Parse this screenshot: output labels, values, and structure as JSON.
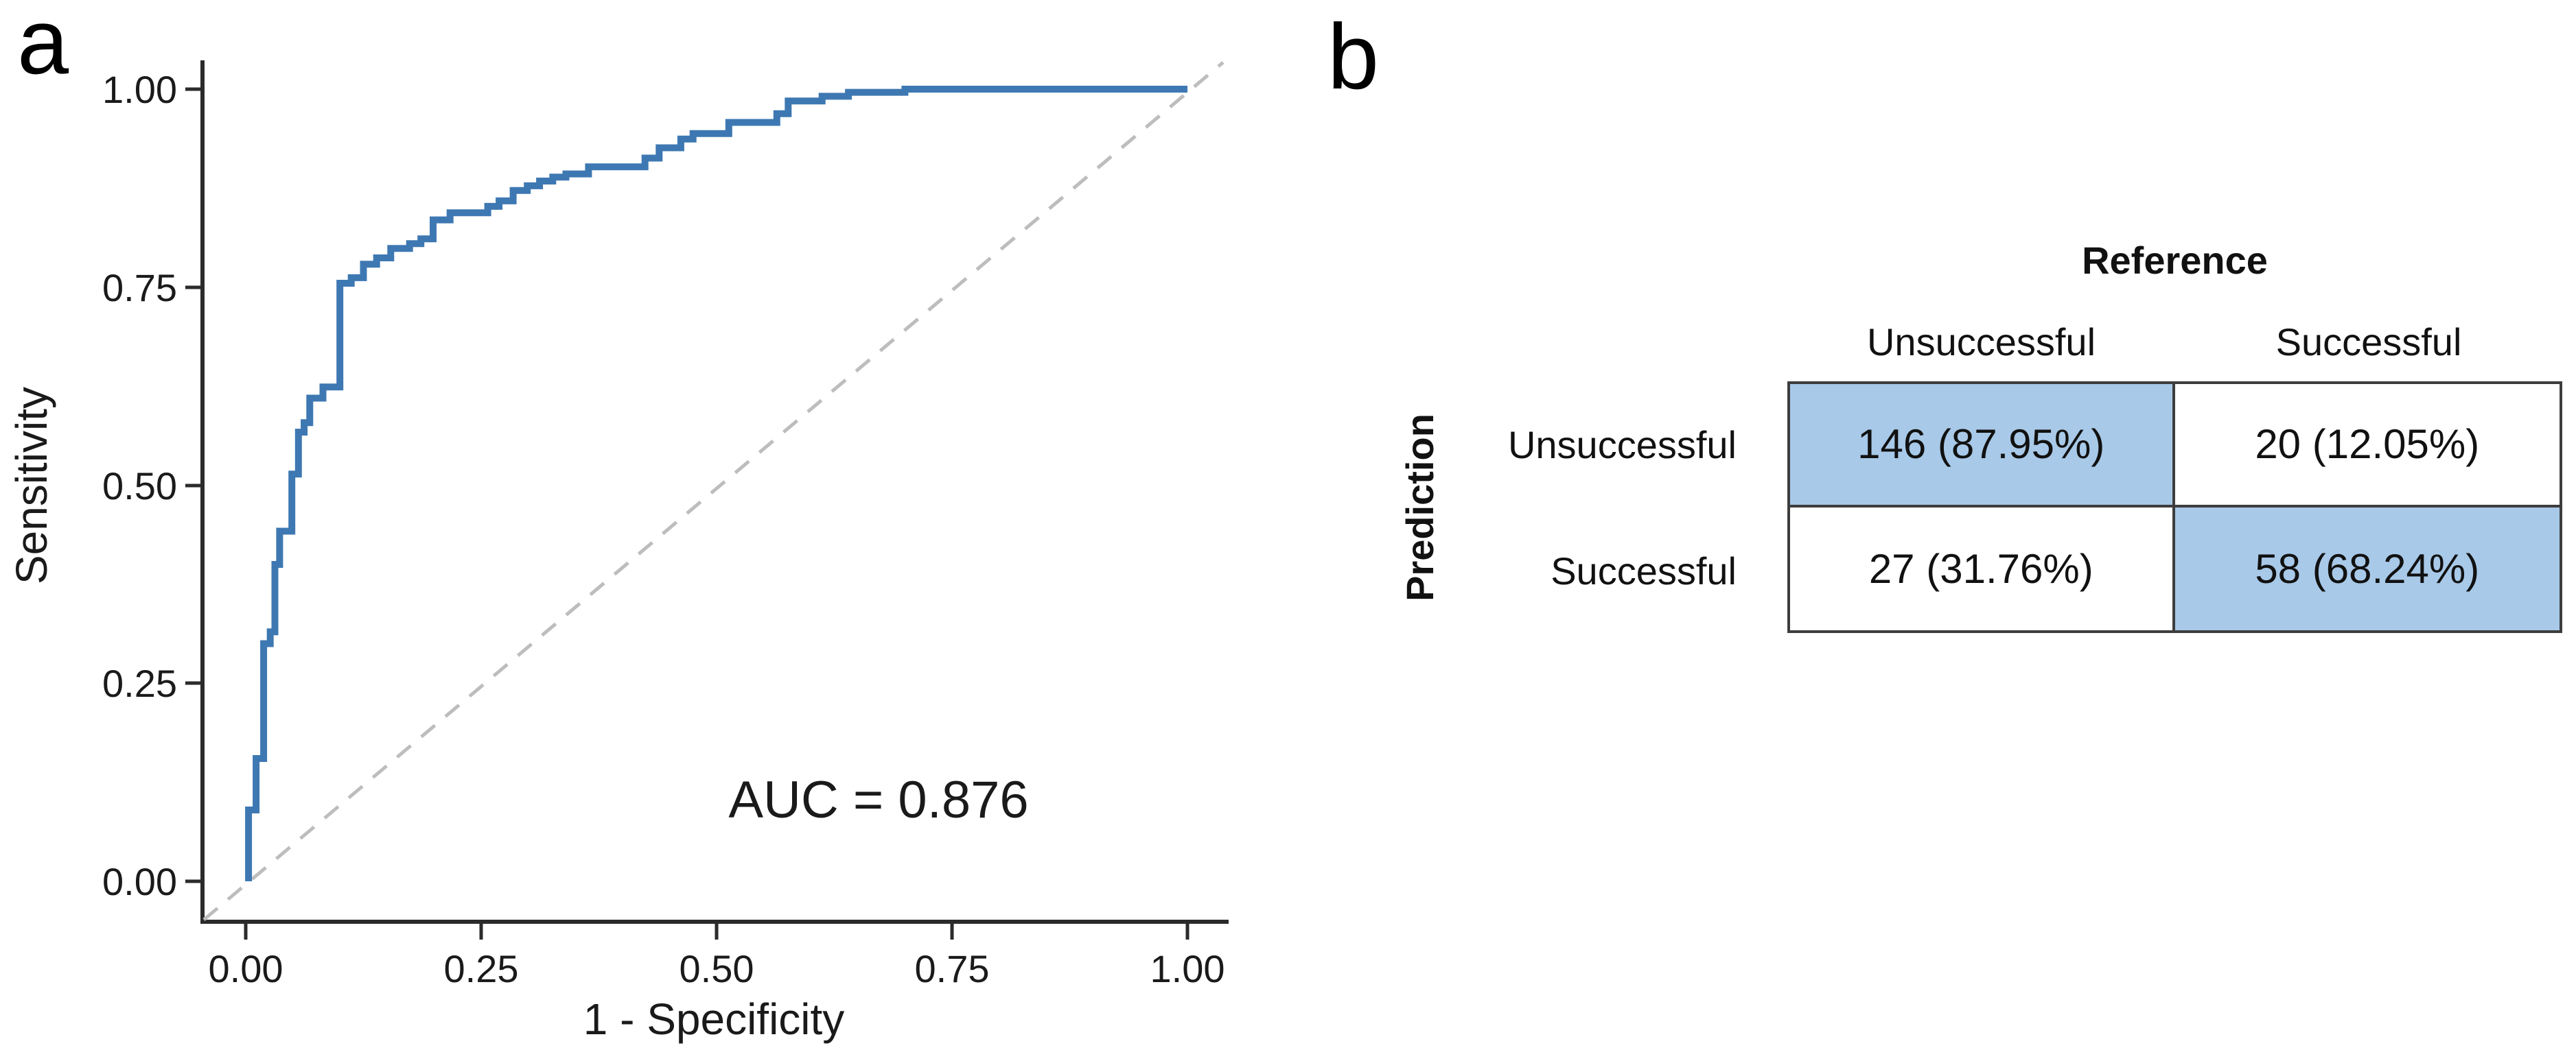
{
  "figure": {
    "panel_a_label": "a",
    "panel_b_label": "b"
  },
  "chart_data": [
    {
      "panel": "a",
      "type": "line",
      "subtype": "roc-curve",
      "title": "",
      "xlabel": "1 - Specificity",
      "ylabel": "Sensitivity",
      "xlim": [
        0,
        1
      ],
      "ylim": [
        0,
        1
      ],
      "grid": false,
      "xticks": [
        "0.00",
        "0.25",
        "0.50",
        "0.75",
        "1.00"
      ],
      "yticks": [
        "0.00",
        "0.25",
        "0.50",
        "0.75",
        "1.00"
      ],
      "annotation": "AUC = 0.876",
      "auc": 0.876,
      "curve_color": "#3E78B2",
      "reference_line": {
        "style": "dashed",
        "from": [
          0,
          0
        ],
        "to": [
          1,
          1
        ],
        "color": "#BDBDBD"
      },
      "series": [
        {
          "name": "ROC curve",
          "points": [
            [
              0.003,
              0.0
            ],
            [
              0.003,
              0.09
            ],
            [
              0.011,
              0.09
            ],
            [
              0.011,
              0.155
            ],
            [
              0.019,
              0.155
            ],
            [
              0.019,
              0.3
            ],
            [
              0.026,
              0.3
            ],
            [
              0.026,
              0.315
            ],
            [
              0.031,
              0.315
            ],
            [
              0.031,
              0.4
            ],
            [
              0.036,
              0.4
            ],
            [
              0.036,
              0.442
            ],
            [
              0.049,
              0.442
            ],
            [
              0.049,
              0.514
            ],
            [
              0.056,
              0.514
            ],
            [
              0.056,
              0.567
            ],
            [
              0.062,
              0.567
            ],
            [
              0.062,
              0.579
            ],
            [
              0.068,
              0.579
            ],
            [
              0.068,
              0.61
            ],
            [
              0.082,
              0.61
            ],
            [
              0.082,
              0.624
            ],
            [
              0.1,
              0.624
            ],
            [
              0.1,
              0.755
            ],
            [
              0.112,
              0.755
            ],
            [
              0.112,
              0.762
            ],
            [
              0.125,
              0.762
            ],
            [
              0.125,
              0.779
            ],
            [
              0.139,
              0.779
            ],
            [
              0.139,
              0.787
            ],
            [
              0.154,
              0.787
            ],
            [
              0.154,
              0.799
            ],
            [
              0.174,
              0.799
            ],
            [
              0.174,
              0.805
            ],
            [
              0.186,
              0.805
            ],
            [
              0.186,
              0.811
            ],
            [
              0.199,
              0.811
            ],
            [
              0.199,
              0.835
            ],
            [
              0.217,
              0.835
            ],
            [
              0.217,
              0.844
            ],
            [
              0.257,
              0.844
            ],
            [
              0.257,
              0.852
            ],
            [
              0.269,
              0.852
            ],
            [
              0.269,
              0.859
            ],
            [
              0.284,
              0.859
            ],
            [
              0.284,
              0.872
            ],
            [
              0.299,
              0.872
            ],
            [
              0.299,
              0.878
            ],
            [
              0.312,
              0.878
            ],
            [
              0.312,
              0.884
            ],
            [
              0.326,
              0.884
            ],
            [
              0.326,
              0.889
            ],
            [
              0.34,
              0.889
            ],
            [
              0.34,
              0.893
            ],
            [
              0.364,
              0.893
            ],
            [
              0.364,
              0.902
            ],
            [
              0.424,
              0.902
            ],
            [
              0.424,
              0.913
            ],
            [
              0.439,
              0.913
            ],
            [
              0.439,
              0.926
            ],
            [
              0.462,
              0.926
            ],
            [
              0.462,
              0.937
            ],
            [
              0.475,
              0.937
            ],
            [
              0.475,
              0.944
            ],
            [
              0.513,
              0.944
            ],
            [
              0.513,
              0.958
            ],
            [
              0.564,
              0.958
            ],
            [
              0.564,
              0.969
            ],
            [
              0.576,
              0.969
            ],
            [
              0.576,
              0.985
            ],
            [
              0.612,
              0.985
            ],
            [
              0.612,
              0.991
            ],
            [
              0.64,
              0.991
            ],
            [
              0.64,
              0.996
            ],
            [
              0.7,
              0.996
            ],
            [
              0.7,
              1.0
            ],
            [
              1.0,
              1.0
            ]
          ]
        }
      ]
    },
    {
      "panel": "b",
      "type": "table",
      "subtype": "confusion-matrix",
      "col_axis_title": "Reference",
      "row_axis_title": "Prediction",
      "col_labels": [
        "Unsuccessful",
        "Successful"
      ],
      "row_labels": [
        "Unsuccessful",
        "Successful"
      ],
      "cells": [
        [
          {
            "text": "146 (87.95%)",
            "count": 146,
            "percent": 87.95,
            "highlight": true
          },
          {
            "text": "20 (12.05%)",
            "count": 20,
            "percent": 12.05,
            "highlight": false
          }
        ],
        [
          {
            "text": "27 (31.76%)",
            "count": 27,
            "percent": 31.76,
            "highlight": false
          },
          {
            "text": "58 (68.24%)",
            "count": 58,
            "percent": 68.24,
            "highlight": true
          }
        ]
      ],
      "highlight_color": "#A8C9E8"
    }
  ]
}
